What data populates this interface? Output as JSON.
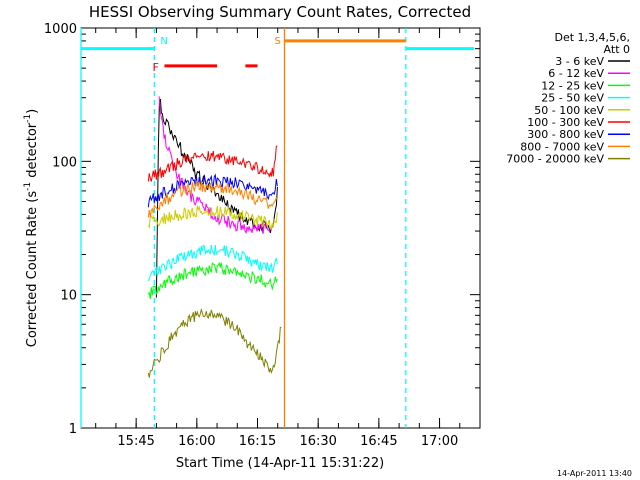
{
  "chart_data": {
    "type": "line",
    "title": "HESSI Observing Summary Count Rates, Corrected",
    "xlabel": "Start Time (14-Apr-11 15:31:22)",
    "ylabel_main": "Corrected Count Rate (s",
    "ylabel_sup1": "-1",
    "ylabel_mid": " detector",
    "ylabel_sup2": "-1",
    "ylabel_end": ")",
    "timestamp": "14-Apr-2011 13:40",
    "y_scale": "log",
    "ylim": [
      1,
      1000
    ],
    "xlim": [
      "15:31:22",
      "17:10"
    ],
    "xticks": [
      "15:45",
      "16:00",
      "16:15",
      "16:30",
      "16:45",
      "17:00"
    ],
    "yticks": [
      "1",
      "10",
      "100",
      "1000"
    ],
    "legend": {
      "header1": "Det 1,3,4,5,6,",
      "header2": "Att 0",
      "placement": "right"
    },
    "series": [
      {
        "name": "3 - 6 keV",
        "color": "#000000",
        "points": [
          [
            "15:50",
            10
          ],
          [
            "15:50:40",
            300
          ],
          [
            "15:52",
            200
          ],
          [
            "15:55",
            140
          ],
          [
            "15:58",
            100
          ],
          [
            "16:00",
            80
          ],
          [
            "16:05",
            55
          ],
          [
            "16:10",
            40
          ],
          [
            "16:15",
            33
          ],
          [
            "16:19",
            32
          ],
          [
            "16:20",
            65
          ]
        ]
      },
      {
        "name": "6 - 12 keV",
        "color": "#ff00ff",
        "points": [
          [
            "15:50:40",
            290
          ],
          [
            "15:52",
            150
          ],
          [
            "15:55",
            80
          ],
          [
            "15:58",
            55
          ],
          [
            "16:00",
            50
          ],
          [
            "16:05",
            38
          ],
          [
            "16:10",
            33
          ],
          [
            "16:15",
            31
          ],
          [
            "16:19",
            32
          ]
        ]
      },
      {
        "name": "12 - 25 keV",
        "color": "#00ff00",
        "points": [
          [
            "15:48",
            10
          ],
          [
            "15:52",
            12
          ],
          [
            "15:56",
            14
          ],
          [
            "16:00",
            15
          ],
          [
            "16:05",
            16
          ],
          [
            "16:10",
            15
          ],
          [
            "16:15",
            13
          ],
          [
            "16:19",
            12
          ],
          [
            "16:20",
            14
          ]
        ]
      },
      {
        "name": "25 - 50 keV",
        "color": "#00ffff",
        "points": [
          [
            "15:48",
            14
          ],
          [
            "15:52",
            16
          ],
          [
            "15:56",
            19
          ],
          [
            "16:00",
            21
          ],
          [
            "16:05",
            22
          ],
          [
            "16:10",
            20
          ],
          [
            "16:15",
            17
          ],
          [
            "16:19",
            16
          ],
          [
            "16:20",
            18
          ]
        ]
      },
      {
        "name": "50 - 100 keV",
        "color": "#cccc00",
        "points": [
          [
            "15:48",
            35
          ],
          [
            "15:52",
            37
          ],
          [
            "15:56",
            40
          ],
          [
            "16:00",
            42
          ],
          [
            "16:05",
            42
          ],
          [
            "16:10",
            40
          ],
          [
            "16:15",
            36
          ],
          [
            "16:19",
            34
          ],
          [
            "16:20",
            40
          ]
        ]
      },
      {
        "name": "100 - 300 keV",
        "color": "#ff0000",
        "points": [
          [
            "15:48",
            75
          ],
          [
            "15:52",
            85
          ],
          [
            "15:56",
            100
          ],
          [
            "16:00",
            110
          ],
          [
            "16:05",
            110
          ],
          [
            "16:10",
            100
          ],
          [
            "16:15",
            88
          ],
          [
            "16:19",
            80
          ],
          [
            "16:20",
            150
          ]
        ]
      },
      {
        "name": "300 - 800 keV",
        "color": "#0000ff",
        "points": [
          [
            "15:48",
            50
          ],
          [
            "15:52",
            58
          ],
          [
            "15:56",
            68
          ],
          [
            "16:00",
            72
          ],
          [
            "16:05",
            72
          ],
          [
            "16:10",
            68
          ],
          [
            "16:15",
            60
          ],
          [
            "16:19",
            55
          ],
          [
            "16:20",
            75
          ]
        ]
      },
      {
        "name": "800 - 7000 keV",
        "color": "#ff8000",
        "points": [
          [
            "15:48",
            40
          ],
          [
            "15:52",
            50
          ],
          [
            "15:56",
            60
          ],
          [
            "16:00",
            65
          ],
          [
            "16:05",
            65
          ],
          [
            "16:10",
            60
          ],
          [
            "16:15",
            52
          ],
          [
            "16:19",
            45
          ],
          [
            "16:20",
            55
          ]
        ]
      },
      {
        "name": "7000 - 20000 keV",
        "color": "#808000",
        "points": [
          [
            "15:48",
            2.5
          ],
          [
            "15:52",
            4
          ],
          [
            "15:56",
            6
          ],
          [
            "16:00",
            7
          ],
          [
            "16:05",
            7
          ],
          [
            "16:10",
            5.5
          ],
          [
            "16:15",
            3.5
          ],
          [
            "16:19",
            2.7
          ],
          [
            "16:21",
            6
          ]
        ]
      }
    ],
    "flag_lines": [
      {
        "label": "N",
        "color": "#00ffff",
        "style": "dashed",
        "times": [
          "15:49:30",
          "16:51:40"
        ]
      },
      {
        "label": "S",
        "color": "#ff8000",
        "style": "solid",
        "times": [
          "16:21:40"
        ]
      },
      {
        "label": "",
        "color": "#00ffff",
        "style": "solid",
        "times": [
          "15:31:22"
        ]
      }
    ],
    "flag_bars": [
      {
        "label": "",
        "color": "#00ffff",
        "y": 700,
        "ranges": [
          [
            "15:31:22",
            "15:49:30"
          ],
          [
            "16:51:40",
            "17:08:30"
          ]
        ]
      },
      {
        "label": "F",
        "color": "#ff0000",
        "y": 520,
        "ranges": [
          [
            "15:52",
            "16:05"
          ],
          [
            "16:12",
            "16:15"
          ]
        ]
      },
      {
        "label": "S",
        "color": "#ff8000",
        "y": 800,
        "ranges": [
          [
            "16:21:40",
            "16:51:40"
          ]
        ]
      }
    ]
  }
}
